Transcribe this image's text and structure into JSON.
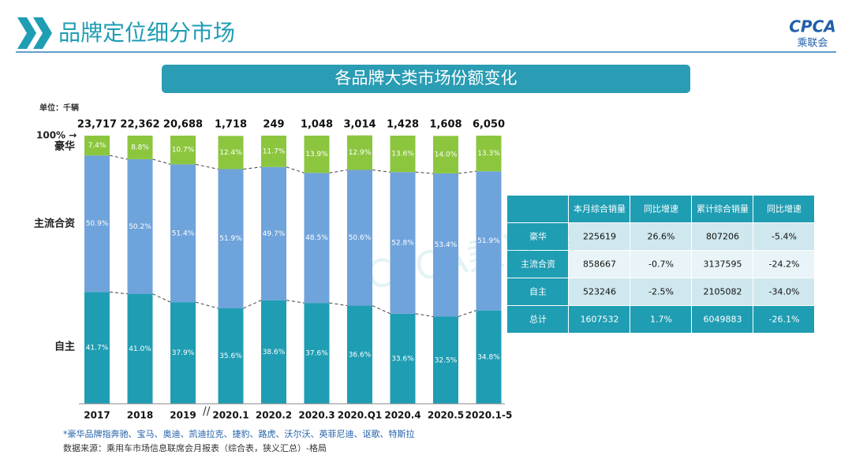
{
  "header": {
    "title": "品牌定位细分市场",
    "logo": "CPCA",
    "logo_sub": "乘联会"
  },
  "banner": "各品牌大类市场份额变化",
  "watermark": "CPCA乘联会",
  "chart_data": {
    "type": "stacked-bar",
    "unit_note": "单位：千辆",
    "categories": [
      "2017",
      "2018",
      "2019",
      "2020.1",
      "2020.2",
      "2020.3",
      "2020.Q1",
      "2020.4",
      "2020.5",
      "2020.1-5"
    ],
    "series": [
      {
        "name": "自主",
        "color": "#1f9db3",
        "values": [
          41.7,
          41.0,
          37.9,
          35.6,
          38.6,
          37.6,
          36.6,
          33.6,
          32.5,
          34.8
        ],
        "value_labels": [
          "41.7%",
          "41.0%",
          "37.9%",
          "35.6%",
          "38.6%",
          "37.6%",
          "36.6%",
          "33.6%",
          "32.5%",
          "34.8%"
        ]
      },
      {
        "name": "主流合资",
        "color": "#6fa3db",
        "values": [
          50.9,
          50.2,
          51.4,
          51.9,
          49.7,
          48.5,
          50.6,
          52.8,
          53.4,
          51.9
        ],
        "value_labels": [
          "50.9%",
          "50.2%",
          "51.4%",
          "51.9%",
          "49.7%",
          "48.5%",
          "50.6%",
          "52.8%",
          "53.4%",
          "51.9%"
        ]
      },
      {
        "name": "豪华",
        "color": "#8cc63f",
        "values": [
          7.4,
          8.8,
          10.7,
          12.4,
          11.7,
          13.9,
          12.9,
          13.6,
          14.0,
          13.3
        ],
        "value_labels": [
          "7.4%",
          "8.8%",
          "10.7%",
          "12.4%",
          "11.7%",
          "13.9%",
          "12.9%",
          "13.6%",
          "14.0%",
          "13.3%"
        ]
      }
    ],
    "totals": {
      "values": [
        23717,
        22362,
        20688,
        1718,
        249,
        1048,
        3014,
        1428,
        1608,
        6050
      ],
      "value_labels": [
        "23,717",
        "22,362",
        "20,688",
        "1,718",
        "249",
        "1,048",
        "3,014",
        "1,428",
        "1,608",
        "6,050"
      ]
    },
    "ylim": [
      0,
      100
    ],
    "yticks": [
      {
        "value": 100,
        "label": "100% →"
      }
    ],
    "footnotes": [
      "*豪华品牌指奔驰、宝马、奥迪、凯迪拉克、捷豹、路虎、沃尔沃、英菲尼迪、讴歌、特斯拉",
      "数据来源：乘用车市场信息联席会月报表（综合表，狭义汇总）-格局"
    ]
  },
  "table": {
    "header": [
      "",
      "本月综合销量",
      "同比增速",
      "累计综合销量",
      "同比增速"
    ],
    "rows": [
      [
        "豪华",
        "225619",
        "26.6%",
        "807206",
        "-5.4%"
      ],
      [
        "主流合资",
        "858667",
        "-0.7%",
        "3137595",
        "-24.2%"
      ],
      [
        "自主",
        "523246",
        "-2.5%",
        "2105082",
        "-34.0%"
      ],
      [
        "总计",
        "1607532",
        "1.7%",
        "6049883",
        "-26.1%"
      ]
    ]
  }
}
